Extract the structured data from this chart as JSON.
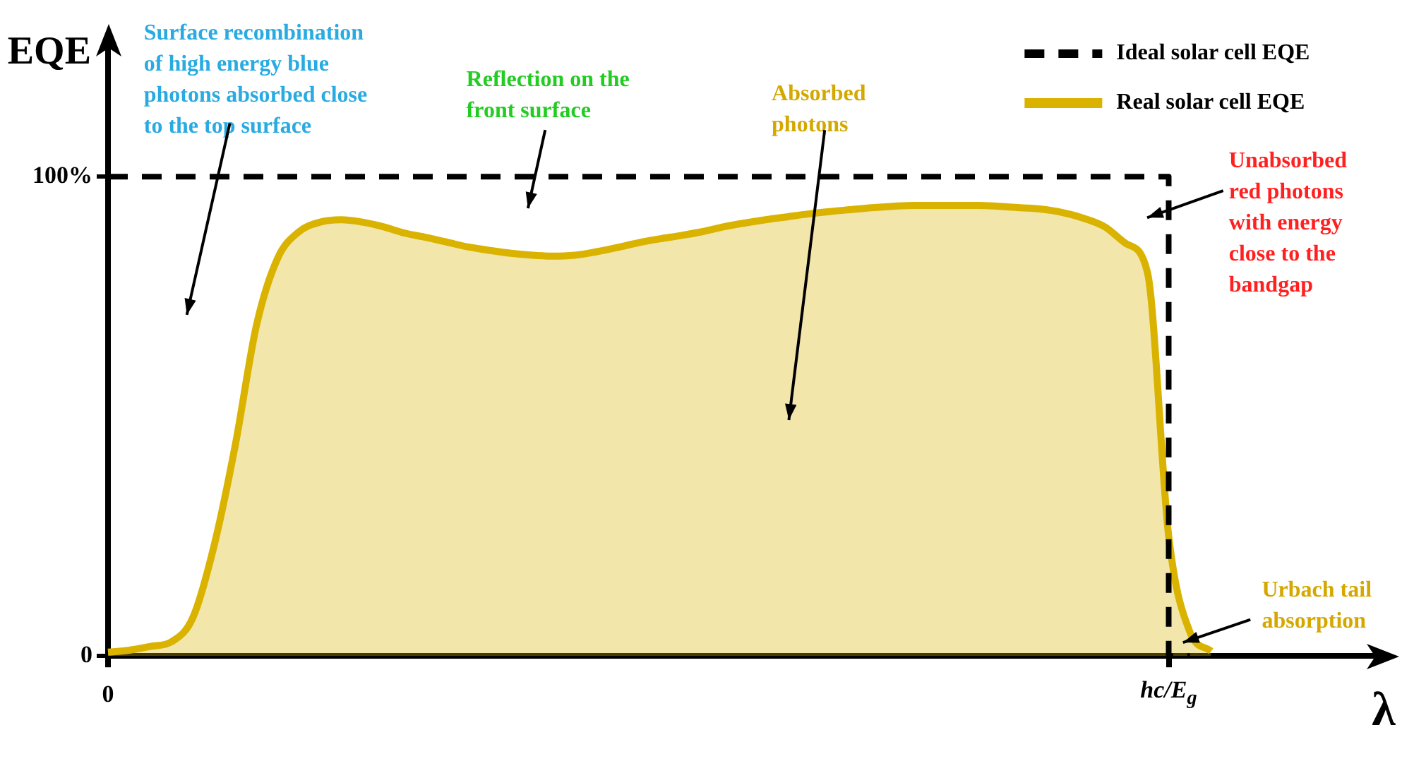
{
  "chart_data": {
    "type": "line",
    "ylabel": "EQE",
    "xlabel": "λ",
    "categories": [
      "0",
      null,
      null,
      null,
      null,
      null,
      null,
      null,
      null,
      null,
      null,
      null,
      null,
      null,
      null,
      null,
      null,
      null,
      null,
      null,
      null,
      null,
      null,
      null,
      null,
      null,
      null,
      null,
      null,
      null,
      null,
      null,
      null,
      null,
      null,
      null,
      null,
      null,
      null,
      null,
      null,
      null,
      null,
      null,
      null,
      null,
      null,
      null,
      null,
      null,
      "hc/E$_{g}$",
      null,
      null,
      null,
      null,
      null,
      null,
      null,
      null,
      null,
      null
    ],
    "ylim": [
      0,
      128
    ],
    "yticks": [
      0,
      {
        "value": 100,
        "label": "100%"
      }
    ],
    "legend": "top right",
    "series": [
      {
        "name": "Ideal solar cell EQE",
        "type": "step",
        "line_style": "dashed",
        "color": "#000000",
        "values": [
          100,
          100,
          100,
          100,
          100,
          100,
          100,
          100,
          100,
          100,
          100,
          100,
          100,
          100,
          100,
          100,
          100,
          100,
          100,
          100,
          100,
          100,
          100,
          100,
          100,
          100,
          100,
          100,
          100,
          100,
          100,
          100,
          100,
          100,
          100,
          100,
          100,
          100,
          100,
          100,
          100,
          100,
          100,
          100,
          100,
          100,
          100,
          100,
          100,
          100,
          100,
          0,
          null,
          null,
          null,
          null,
          null,
          null,
          null,
          null,
          null
        ]
      },
      {
        "name": "Real solar cell EQE",
        "type": "area",
        "color": "#dab300",
        "values": [
          0.8,
          1.2,
          2,
          3,
          8,
          23,
          44,
          69,
          83,
          88.5,
          90.5,
          91,
          90.5,
          89.5,
          88.2,
          87.3,
          86.3,
          85.3,
          84.6,
          84,
          83.6,
          83.4,
          83.6,
          84.3,
          85.2,
          86.2,
          87,
          87.7,
          88.5,
          89.5,
          90.3,
          91,
          91.6,
          92.2,
          92.7,
          93.1,
          93.5,
          93.8,
          94,
          94,
          94,
          94,
          93.8,
          93.5,
          93.2,
          92.5,
          91.3,
          89.5,
          86,
          80,
          25,
          5,
          1,
          null,
          null,
          null,
          null,
          null,
          null,
          null,
          null
        ]
      }
    ],
    "annotations": [
      "Surface recombination\nof high energy blue\nphotons absorbed close\nto the top surface",
      "Reflection on the\nfront surface",
      "Absorbed\nphotons",
      "Unabsorbed\nred photons\nwith energy\nclose to the\nbandgap",
      "Urbach tail\nabsorption"
    ]
  }
}
